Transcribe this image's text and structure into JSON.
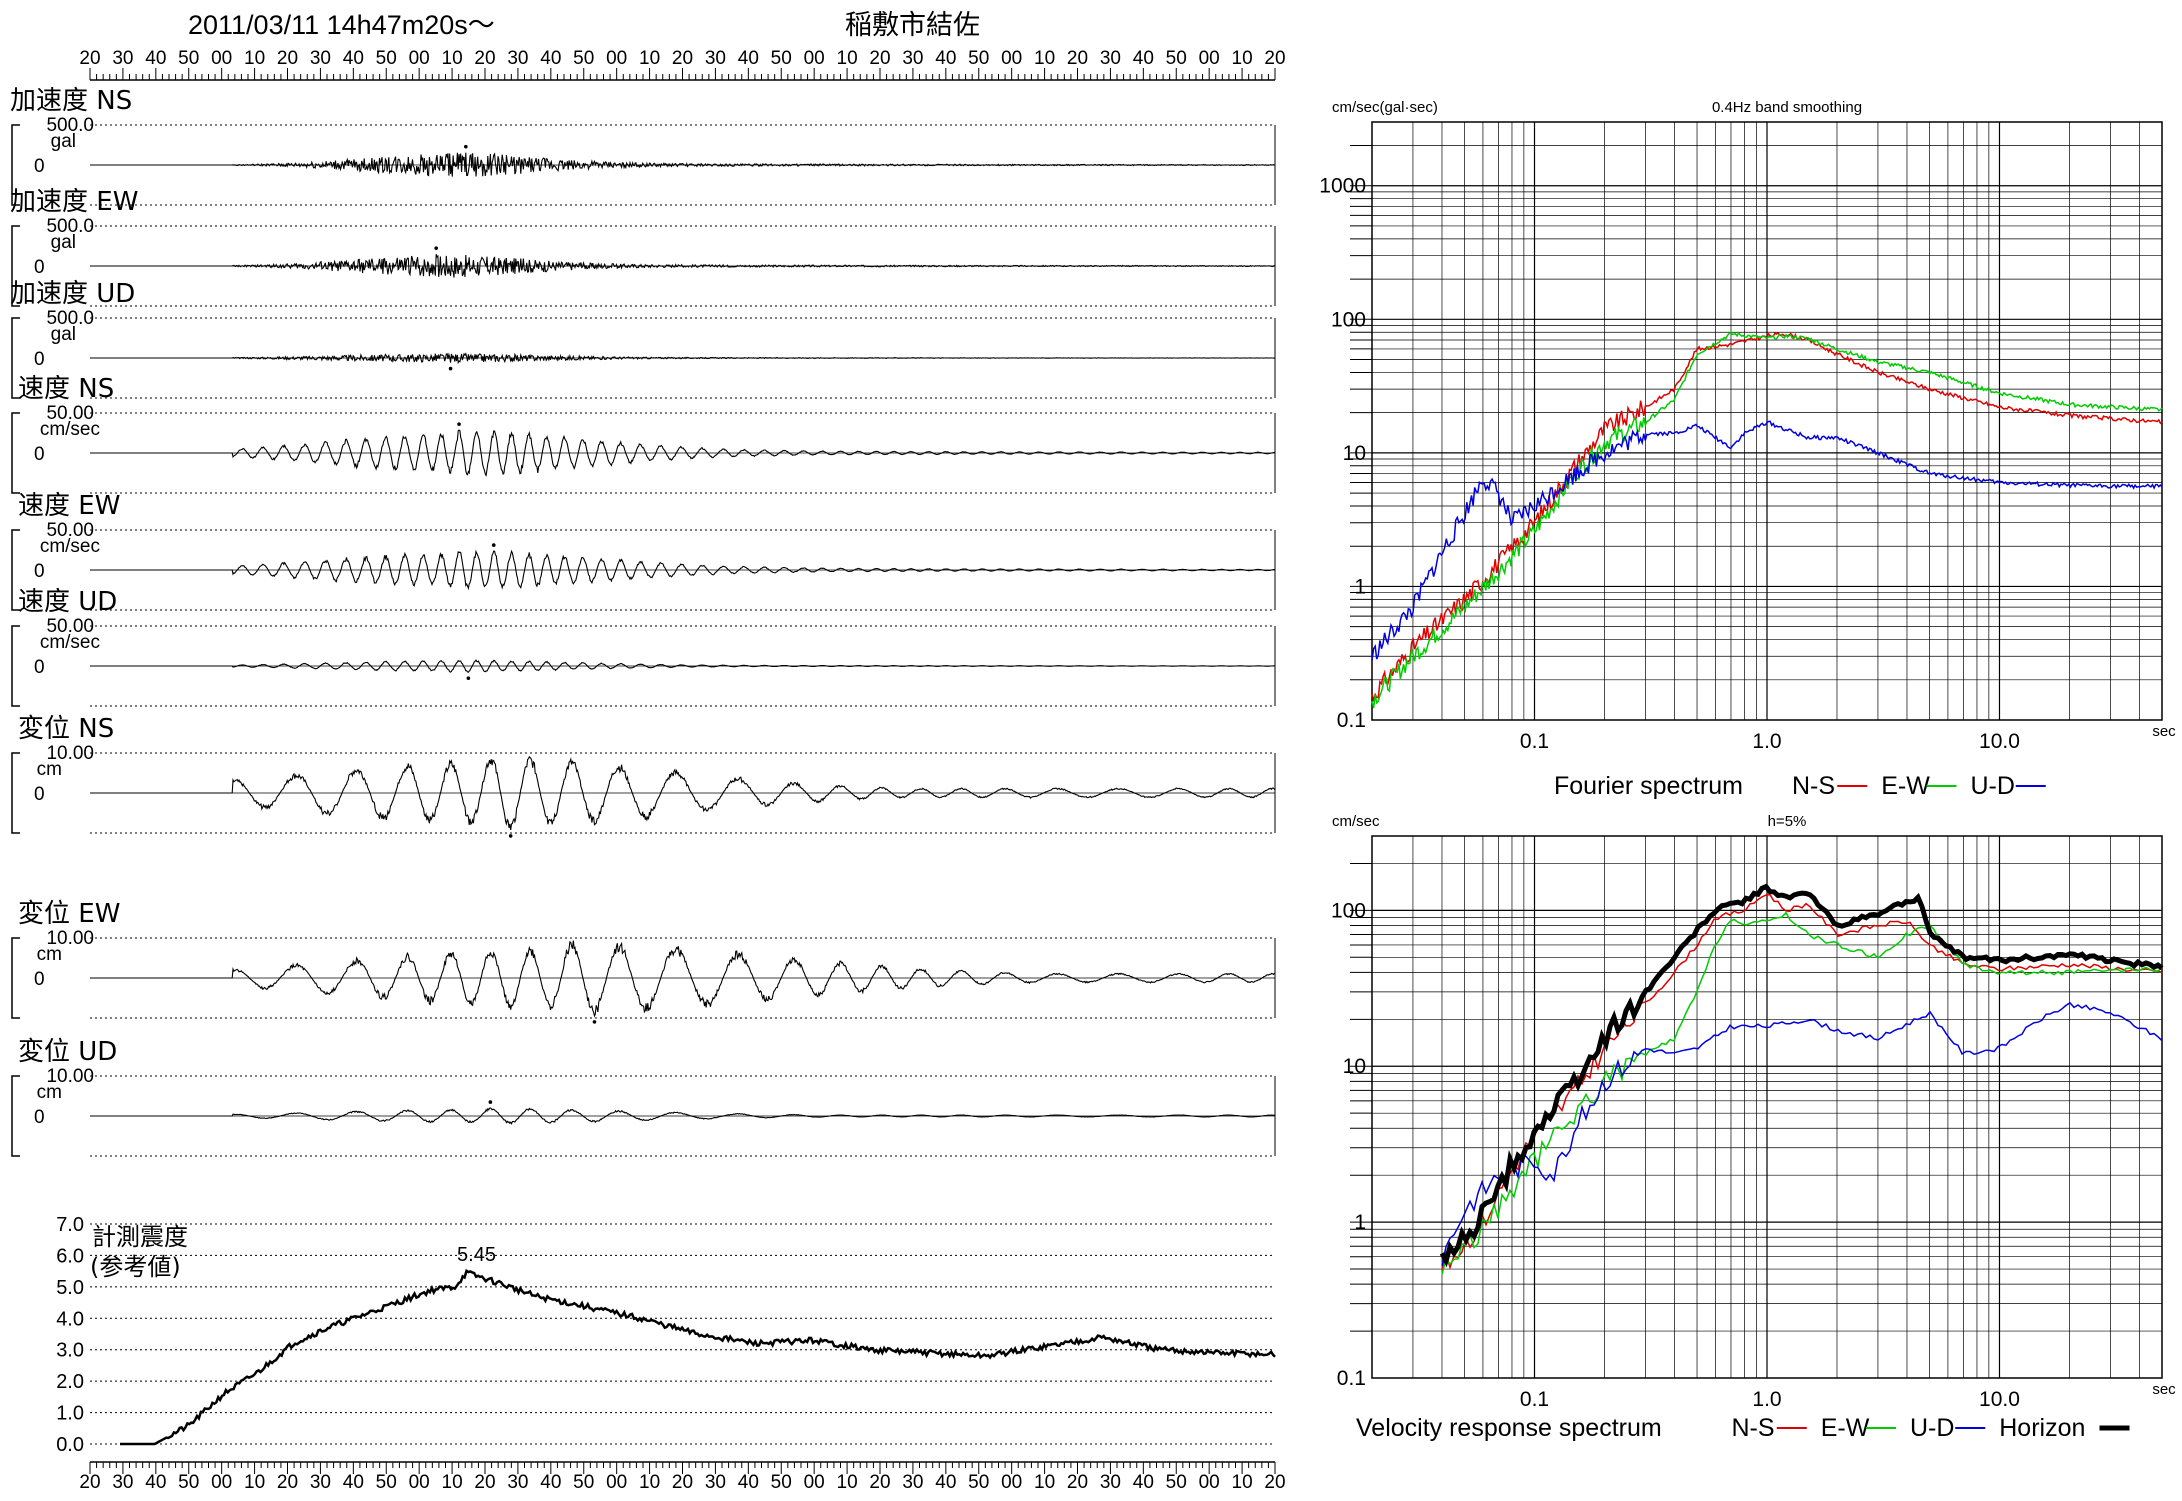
{
  "header": {
    "datetime": "2011/03/11  14h47m20s～",
    "station": "稲敷市結佐"
  },
  "time_ticks": [
    "20",
    "30",
    "40",
    "50",
    "00",
    "10",
    "20",
    "30",
    "40",
    "50",
    "00",
    "10",
    "20",
    "30",
    "40",
    "50",
    "00",
    "10",
    "20",
    "30",
    "40",
    "50",
    "00",
    "10",
    "20",
    "30",
    "40",
    "50",
    "00",
    "10",
    "20",
    "30",
    "40",
    "50",
    "00",
    "10",
    "20"
  ],
  "colors": {
    "ns": "#e00000",
    "ew": "#00cc00",
    "ud": "#0000e0",
    "horizon": "#000000",
    "grid": "#000000"
  },
  "chart_data": [
    {
      "type": "line",
      "panel": "waveforms",
      "series": [
        {
          "name": "加速度 NS",
          "max_label": "500.0",
          "unit": "gal",
          "zero": "0",
          "amp": 0.28,
          "peak_t": 0.3,
          "width": 0.1,
          "kind": "acc",
          "seed": 1
        },
        {
          "name": "加速度 EW",
          "max_label": "500.0",
          "unit": "gal",
          "zero": "0",
          "amp": 0.26,
          "peak_t": 0.29,
          "width": 0.1,
          "kind": "acc",
          "seed": 2
        },
        {
          "name": "加速度 UD",
          "max_label": "500.0",
          "unit": "gal",
          "zero": "0",
          "amp": 0.1,
          "peak_t": 0.29,
          "width": 0.12,
          "kind": "acc",
          "seed": 3
        },
        {
          "name": "速度 NS",
          "max_label": "50.00",
          "unit": "cm/sec",
          "zero": "0",
          "amp": 0.52,
          "peak_t": 0.31,
          "width": 0.15,
          "kind": "vel",
          "seed": 4
        },
        {
          "name": "速度 EW",
          "max_label": "50.00",
          "unit": "cm/sec",
          "zero": "0",
          "amp": 0.45,
          "peak_t": 0.31,
          "width": 0.16,
          "kind": "vel",
          "seed": 5
        },
        {
          "name": "速度 UD",
          "max_label": "50.00",
          "unit": "cm/sec",
          "zero": "0",
          "amp": 0.14,
          "peak_t": 0.3,
          "width": 0.14,
          "kind": "vel",
          "seed": 6
        },
        {
          "name": "変位 NS",
          "max_label": "10.00",
          "unit": "cm",
          "zero": "0",
          "amp": 0.85,
          "peak_t": 0.33,
          "width": 0.22,
          "kind": "dis",
          "seed": 7
        },
        {
          "name": "変位 EW",
          "max_label": "10.00",
          "unit": "cm",
          "zero": "0",
          "amp": 0.82,
          "peak_t": 0.4,
          "width": 0.25,
          "kind": "dis",
          "seed": 8
        },
        {
          "name": "変位 UD",
          "max_label": "10.00",
          "unit": "cm",
          "zero": "0",
          "amp": 0.18,
          "peak_t": 0.33,
          "width": 0.18,
          "kind": "dis",
          "seed": 9
        }
      ]
    },
    {
      "type": "line",
      "panel": "intensity",
      "title": "計測震度",
      "subtitle": "(参考値)",
      "peak_label": "5.45",
      "yticks": [
        "0.0",
        "1.0",
        "2.0",
        "3.0",
        "4.0",
        "5.0",
        "6.0",
        "7.0"
      ],
      "ylim": [
        0,
        7
      ],
      "x": [
        0.0,
        0.03,
        0.06,
        0.09,
        0.12,
        0.15,
        0.18,
        0.21,
        0.24,
        0.27,
        0.29,
        0.3,
        0.33,
        0.36,
        0.4,
        0.45,
        0.5,
        0.55,
        0.6,
        0.65,
        0.7,
        0.75,
        0.8,
        0.85,
        0.9,
        0.95,
        1.0
      ],
      "y": [
        0.0,
        0.0,
        0.6,
        1.6,
        2.3,
        3.2,
        3.7,
        4.1,
        4.5,
        4.9,
        5.0,
        5.45,
        5.1,
        4.7,
        4.4,
        4.0,
        3.5,
        3.2,
        3.3,
        3.0,
        2.9,
        2.8,
        3.1,
        3.4,
        3.0,
        2.9,
        2.85
      ]
    },
    {
      "type": "line",
      "panel": "fourier",
      "title": "0.4Hz band smoothing",
      "ylabel": "cm/sec(gal·sec)",
      "xlabel": "sec",
      "xscale": "log",
      "yscale": "log",
      "xlim": [
        0.02,
        50
      ],
      "ylim": [
        0.1,
        3000
      ],
      "xticks": [
        "0.1",
        "1.0",
        "10.0"
      ],
      "yticks": [
        "0.1",
        "1",
        "10",
        "100",
        "1000"
      ],
      "legend": [
        "Fourier spectrum",
        "N-S",
        "E-W",
        "U-D"
      ],
      "series": [
        {
          "name": "N-S",
          "x": [
            0.02,
            0.03,
            0.05,
            0.07,
            0.1,
            0.15,
            0.2,
            0.3,
            0.4,
            0.5,
            0.7,
            1.0,
            1.2,
            1.5,
            2,
            3,
            5,
            10,
            20,
            50
          ],
          "y": [
            0.15,
            0.35,
            0.8,
            1.5,
            3,
            8,
            15,
            22,
            30,
            60,
            65,
            75,
            78,
            70,
            55,
            40,
            30,
            22,
            19,
            17
          ]
        },
        {
          "name": "E-W",
          "x": [
            0.02,
            0.03,
            0.05,
            0.07,
            0.1,
            0.15,
            0.2,
            0.3,
            0.4,
            0.5,
            0.7,
            1.0,
            1.2,
            1.5,
            2,
            3,
            5,
            10,
            20,
            50
          ],
          "y": [
            0.14,
            0.3,
            0.7,
            1.3,
            2.6,
            7,
            12,
            17,
            25,
            55,
            78,
            72,
            75,
            72,
            60,
            48,
            40,
            28,
            23,
            21
          ]
        },
        {
          "name": "U-D",
          "x": [
            0.02,
            0.03,
            0.04,
            0.05,
            0.06,
            0.07,
            0.08,
            0.1,
            0.15,
            0.2,
            0.3,
            0.4,
            0.5,
            0.6,
            0.7,
            0.8,
            1.0,
            1.2,
            1.5,
            2,
            3,
            5,
            10,
            20,
            50
          ],
          "y": [
            0.3,
            0.7,
            1.8,
            3.5,
            6.5,
            5,
            3,
            4,
            7,
            10,
            14,
            14,
            16,
            13,
            11,
            14,
            17,
            15,
            13,
            13,
            10,
            7,
            6,
            5.7,
            5.6
          ]
        }
      ]
    },
    {
      "type": "line",
      "panel": "velocity_response",
      "title": "h=5%",
      "ylabel": "cm/sec",
      "xlabel": "sec",
      "xscale": "log",
      "yscale": "log",
      "xlim": [
        0.02,
        50
      ],
      "ylim": [
        0.1,
        300
      ],
      "xticks": [
        "0.1",
        "1.0",
        "10.0"
      ],
      "yticks": [
        "0.1",
        "1",
        "10",
        "100"
      ],
      "legend": [
        "Velocity response spectrum",
        "N-S",
        "E-W",
        "U-D",
        "Horizon"
      ],
      "series": [
        {
          "name": "N-S",
          "x": [
            0.04,
            0.06,
            0.08,
            0.1,
            0.15,
            0.2,
            0.3,
            0.4,
            0.5,
            0.6,
            0.7,
            0.8,
            1.0,
            1.2,
            1.5,
            2,
            3,
            4,
            5,
            7,
            10,
            20,
            50
          ],
          "y": [
            0.5,
            1.0,
            2.2,
            3.5,
            7,
            13,
            25,
            40,
            60,
            90,
            95,
            100,
            130,
            100,
            110,
            70,
            80,
            85,
            60,
            45,
            42,
            45,
            40
          ]
        },
        {
          "name": "E-W",
          "x": [
            0.04,
            0.06,
            0.08,
            0.1,
            0.15,
            0.2,
            0.3,
            0.4,
            0.5,
            0.6,
            0.7,
            0.8,
            1.0,
            1.2,
            1.5,
            2,
            3,
            4,
            5,
            7,
            10,
            20,
            50
          ],
          "y": [
            0.5,
            0.9,
            1.6,
            2.5,
            5,
            8,
            12,
            15,
            30,
            60,
            90,
            80,
            85,
            95,
            70,
            60,
            50,
            70,
            80,
            45,
            40,
            40,
            42
          ]
        },
        {
          "name": "U-D",
          "x": [
            0.04,
            0.05,
            0.07,
            0.1,
            0.12,
            0.15,
            0.2,
            0.3,
            0.4,
            0.5,
            0.7,
            1.0,
            1.5,
            2,
            3,
            5,
            7,
            10,
            15,
            20,
            30,
            50
          ],
          "y": [
            0.6,
            1.2,
            2.0,
            2.5,
            2.0,
            4,
            8,
            13,
            12,
            13,
            18,
            18,
            20,
            17,
            15,
            22,
            12,
            13,
            20,
            25,
            22,
            15
          ]
        },
        {
          "name": "Horizon",
          "x": [
            0.04,
            0.06,
            0.08,
            0.1,
            0.15,
            0.2,
            0.3,
            0.4,
            0.5,
            0.6,
            0.7,
            0.8,
            1.0,
            1.2,
            1.5,
            2,
            3,
            4,
            4.5,
            5,
            7,
            10,
            20,
            50
          ],
          "y": [
            0.55,
            1.1,
            2.3,
            3.8,
            8,
            15,
            30,
            50,
            75,
            100,
            110,
            115,
            140,
            120,
            130,
            80,
            95,
            115,
            120,
            70,
            50,
            48,
            52,
            43
          ]
        }
      ]
    }
  ]
}
